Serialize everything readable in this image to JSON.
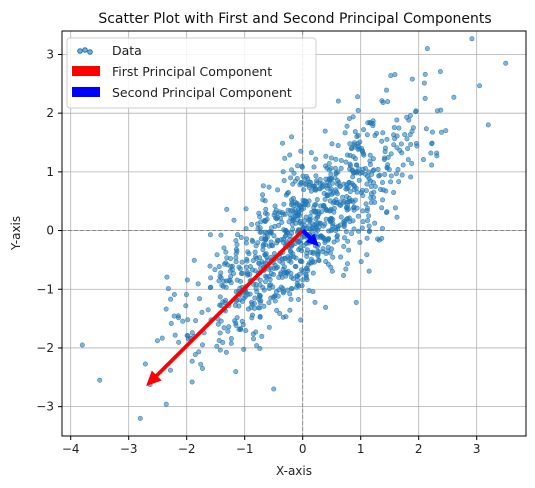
{
  "chart_data": {
    "type": "scatter",
    "title": "Scatter Plot with First and Second Principal Components",
    "xlabel": "X-axis",
    "ylabel": "Y-axis",
    "xlim": [
      -4.15,
      3.85
    ],
    "ylim": [
      -3.5,
      3.4
    ],
    "xticks": [
      -4,
      -3,
      -2,
      -1,
      0,
      1,
      2,
      3
    ],
    "yticks": [
      -3,
      -2,
      -1,
      0,
      1,
      2,
      3
    ],
    "grid": true,
    "origin_lines": true,
    "legend_position": "top-left",
    "scatter": {
      "name": "Data",
      "color": "#1f77b4",
      "n_points": 1000,
      "mean": [
        0.0,
        0.0
      ],
      "std": [
        1.0,
        1.0
      ],
      "correlation": 0.8,
      "example_outliers": [
        [
          -3.8,
          -1.95
        ],
        [
          -3.5,
          -2.55
        ],
        [
          -2.8,
          -3.2
        ],
        [
          3.5,
          2.85
        ],
        [
          3.2,
          1.8
        ],
        [
          2.15,
          3.1
        ],
        [
          -0.5,
          -2.7
        ]
      ]
    },
    "arrows": [
      {
        "name": "First Principal Component",
        "color": "#ff0000",
        "start": [
          0,
          0
        ],
        "end": [
          -2.7,
          -2.65
        ]
      },
      {
        "name": "Second Principal Component",
        "color": "#0000ff",
        "start": [
          0,
          0
        ],
        "end": [
          0.28,
          -0.27
        ]
      }
    ]
  }
}
